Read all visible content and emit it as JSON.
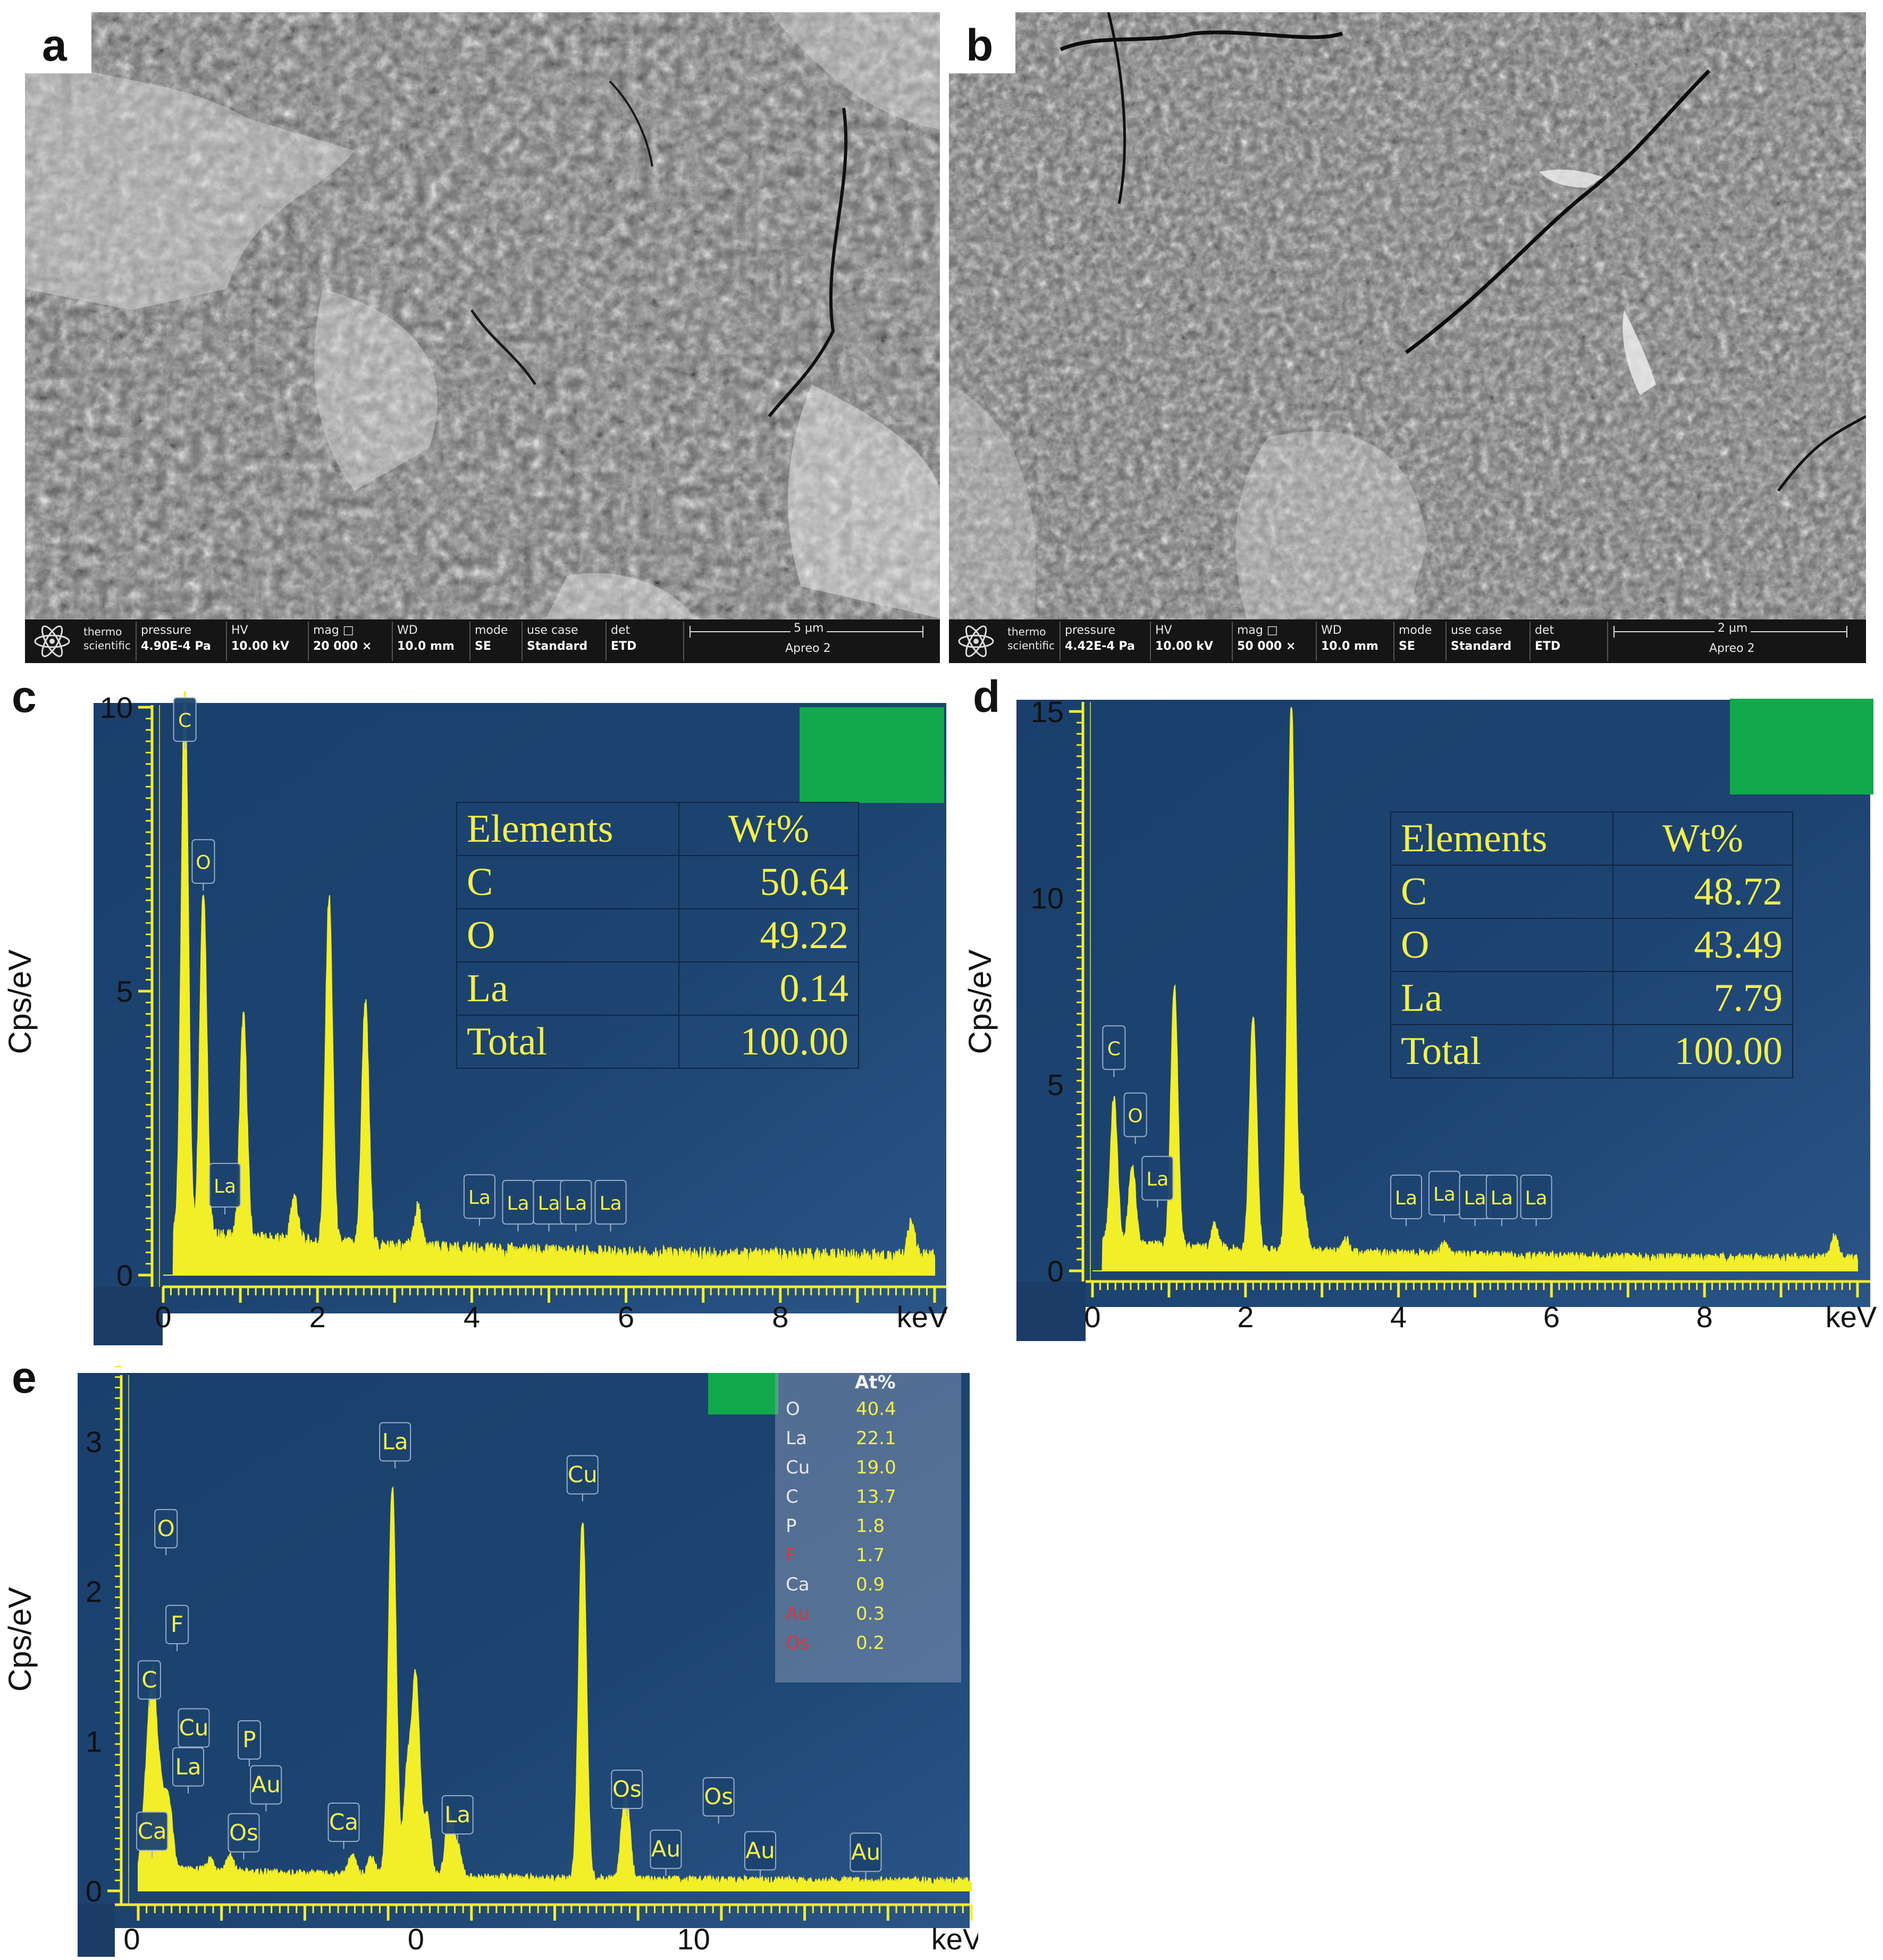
{
  "panels": {
    "a": "a",
    "b": "b",
    "c": "c",
    "d": "d",
    "e": "e"
  },
  "sem": [
    {
      "letter": "a",
      "brand_top": "thermo",
      "brand_bottom": "scientific",
      "fields": [
        {
          "label": "pressure",
          "value": "4.90E-4 Pa"
        },
        {
          "label": "HV",
          "value": "10.00 kV"
        },
        {
          "label": "mag  □",
          "value": "20 000 ×"
        },
        {
          "label": "WD",
          "value": "10.0 mm"
        },
        {
          "label": "mode",
          "value": "SE"
        },
        {
          "label": "use case",
          "value": "Standard"
        },
        {
          "label": "det",
          "value": "ETD"
        }
      ],
      "scale": "5 µm",
      "instrument": "Apreo 2"
    },
    {
      "letter": "b",
      "brand_top": "thermo",
      "brand_bottom": "scientific",
      "fields": [
        {
          "label": "pressure",
          "value": "4.42E-4 Pa"
        },
        {
          "label": "HV",
          "value": "10.00 kV"
        },
        {
          "label": "mag  □",
          "value": "50 000 ×"
        },
        {
          "label": "WD",
          "value": "10.0 mm"
        },
        {
          "label": "mode",
          "value": "SE"
        },
        {
          "label": "use case",
          "value": "Standard"
        },
        {
          "label": "det",
          "value": "ETD"
        }
      ],
      "scale": "2 µm",
      "instrument": "Apreo 2"
    }
  ],
  "chart_data": [
    {
      "panel": "c",
      "type": "line",
      "xlabel": "keV",
      "ylabel": "Cps/eV",
      "xlim": [
        0,
        10
      ],
      "ylim": [
        0,
        10
      ],
      "xticks": [
        0,
        2,
        4,
        6,
        8
      ],
      "yticks": [
        0,
        5,
        10
      ],
      "background_color": "#1d4471",
      "line_color": "#f2ef29",
      "baseline": 0.3,
      "peaks": [
        {
          "x": 0.28,
          "y": 9.6
        },
        {
          "x": 0.52,
          "y": 6.1
        },
        {
          "x": 1.04,
          "y": 3.9
        },
        {
          "x": 1.7,
          "y": 0.8
        },
        {
          "x": 2.15,
          "y": 6.1
        },
        {
          "x": 2.62,
          "y": 4.3
        },
        {
          "x": 3.3,
          "y": 0.7
        },
        {
          "x": 9.7,
          "y": 0.6
        }
      ],
      "peak_labels": [
        {
          "text": "C",
          "x": 0.28,
          "y": 9.4
        },
        {
          "text": "O",
          "x": 0.52,
          "y": 6.9
        },
        {
          "text": "La",
          "x": 0.8,
          "y": 1.2
        },
        {
          "text": "La",
          "x": 4.1,
          "y": 1.0
        },
        {
          "text": "La",
          "x": 4.6,
          "y": 0.9
        },
        {
          "text": "La",
          "x": 5.0,
          "y": 0.9
        },
        {
          "text": "La",
          "x": 5.35,
          "y": 0.9
        },
        {
          "text": "La",
          "x": 5.8,
          "y": 0.9
        }
      ],
      "table": {
        "headers": [
          "Elements",
          "Wt%"
        ],
        "rows": [
          [
            "C",
            "50.64"
          ],
          [
            "O",
            "49.22"
          ],
          [
            "La",
            "0.14"
          ],
          [
            "Total",
            "100.00"
          ]
        ]
      }
    },
    {
      "panel": "d",
      "type": "line",
      "xlabel": "keV",
      "ylabel": "Cps/eV",
      "xlim": [
        0,
        10
      ],
      "ylim": [
        0,
        15
      ],
      "xticks": [
        0,
        2,
        4,
        6,
        8
      ],
      "yticks": [
        0,
        5,
        10,
        15
      ],
      "background_color": "#1d4471",
      "line_color": "#f2ef29",
      "baseline": 0.3,
      "peaks": [
        {
          "x": 0.28,
          "y": 3.9
        },
        {
          "x": 0.52,
          "y": 2.1
        },
        {
          "x": 1.07,
          "y": 7.0
        },
        {
          "x": 1.6,
          "y": 0.6
        },
        {
          "x": 2.1,
          "y": 6.3
        },
        {
          "x": 2.6,
          "y": 14.7
        },
        {
          "x": 2.75,
          "y": 1.4
        },
        {
          "x": 3.3,
          "y": 0.4
        },
        {
          "x": 4.6,
          "y": 0.3
        },
        {
          "x": 9.7,
          "y": 0.6
        }
      ],
      "peak_labels": [
        {
          "text": "C",
          "x": 0.28,
          "y": 5.4
        },
        {
          "text": "O",
          "x": 0.56,
          "y": 3.6
        },
        {
          "text": "La",
          "x": 0.85,
          "y": 1.9
        },
        {
          "text": "La",
          "x": 4.1,
          "y": 1.4
        },
        {
          "text": "La",
          "x": 4.6,
          "y": 1.5
        },
        {
          "text": "La",
          "x": 5.0,
          "y": 1.4
        },
        {
          "text": "La",
          "x": 5.35,
          "y": 1.4
        },
        {
          "text": "La",
          "x": 5.8,
          "y": 1.4
        }
      ],
      "table": {
        "headers": [
          "Elements",
          "Wt%"
        ],
        "rows": [
          [
            "C",
            "48.72"
          ],
          [
            "O",
            "43.49"
          ],
          [
            "La",
            "7.79"
          ],
          [
            "Total",
            "100.00"
          ]
        ]
      }
    },
    {
      "panel": "e",
      "type": "line",
      "xlabel": "keV",
      "ylabel": "Cps/eV",
      "xlim": [
        -10,
        20
      ],
      "ylim": [
        0,
        3.5
      ],
      "xticks": [
        0,
        10
      ],
      "xtick_labels": [
        {
          "text": "0",
          "x": -10
        },
        {
          "text": "0",
          "x": 0
        },
        {
          "text": "10",
          "x": 10
        }
      ],
      "yticks": [
        0,
        1,
        2,
        3
      ],
      "background_color": "#1d4471",
      "line_color": "#f2ef29",
      "baseline": 0.06,
      "peaks": [
        {
          "x": -9.72,
          "y": 0.45
        },
        {
          "x": -9.48,
          "y": 1.2
        },
        {
          "x": -9.2,
          "y": 0.5
        },
        {
          "x": -8.9,
          "y": 0.45
        },
        {
          "x": -7.4,
          "y": 0.08
        },
        {
          "x": -6.7,
          "y": 0.1
        },
        {
          "x": -2.3,
          "y": 0.13
        },
        {
          "x": -1.6,
          "y": 0.13
        },
        {
          "x": -0.85,
          "y": 2.6
        },
        {
          "x": -0.3,
          "y": 0.7
        },
        {
          "x": 0.0,
          "y": 1.3
        },
        {
          "x": 0.4,
          "y": 0.4
        },
        {
          "x": 1.2,
          "y": 0.42
        },
        {
          "x": 1.5,
          "y": 0.2
        },
        {
          "x": 6.0,
          "y": 2.4
        },
        {
          "x": 7.5,
          "y": 0.3
        },
        {
          "x": 7.6,
          "y": 0.33
        }
      ],
      "peak_labels": [
        {
          "text": "O",
          "x": -9.0,
          "y": 2.29
        },
        {
          "text": "F",
          "x": -8.6,
          "y": 1.65
        },
        {
          "text": "C",
          "x": -9.6,
          "y": 1.28
        },
        {
          "text": "Cu",
          "x": -8.0,
          "y": 0.96
        },
        {
          "text": "La",
          "x": -8.2,
          "y": 0.7
        },
        {
          "text": "P",
          "x": -6.0,
          "y": 0.88
        },
        {
          "text": "Au",
          "x": -5.4,
          "y": 0.58
        },
        {
          "text": "Ca",
          "x": -9.5,
          "y": 0.27
        },
        {
          "text": "Os",
          "x": -6.2,
          "y": 0.26
        },
        {
          "text": "Ca",
          "x": -2.6,
          "y": 0.33
        },
        {
          "text": "La",
          "x": -0.75,
          "y": 2.87
        },
        {
          "text": "La",
          "x": 1.5,
          "y": 0.38
        },
        {
          "text": "Cu",
          "x": 6.0,
          "y": 2.65
        },
        {
          "text": "Os",
          "x": 7.6,
          "y": 0.55
        },
        {
          "text": "Au",
          "x": 9.0,
          "y": 0.15
        },
        {
          "text": "Os",
          "x": 10.9,
          "y": 0.5
        },
        {
          "text": "Au",
          "x": 12.4,
          "y": 0.14
        },
        {
          "text": "Au",
          "x": 16.2,
          "y": 0.13
        }
      ],
      "composition": {
        "header": "At%",
        "rows": [
          {
            "element": "O",
            "value": "40.4",
            "color": "#e8e8e8"
          },
          {
            "element": "La",
            "value": "22.1",
            "color": "#e8e8e8"
          },
          {
            "element": "Cu",
            "value": "19.0",
            "color": "#e8e8e8"
          },
          {
            "element": "C",
            "value": "13.7",
            "color": "#e8e8e8"
          },
          {
            "element": "P",
            "value": "1.8",
            "color": "#e8e8e8"
          },
          {
            "element": "F",
            "value": "1.7",
            "color": "#d9363e"
          },
          {
            "element": "Ca",
            "value": "0.9",
            "color": "#e8e8e8"
          },
          {
            "element": "Au",
            "value": "0.3",
            "color": "#d9363e"
          },
          {
            "element": "Os",
            "value": "0.2",
            "color": "#d9363e"
          }
        ]
      }
    }
  ]
}
